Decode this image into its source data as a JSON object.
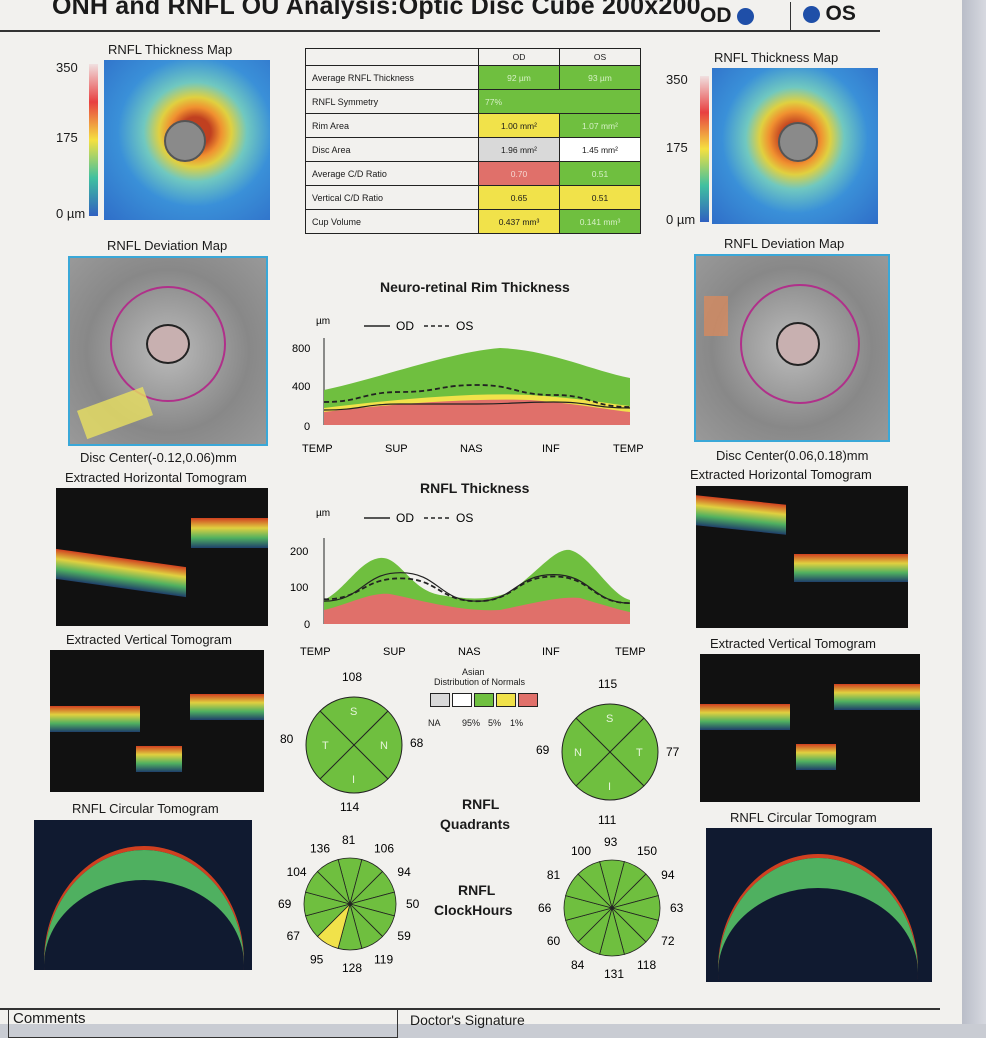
{
  "header": {
    "title": "ONH and RNFL OU Analysis:Optic Disc Cube 200x200",
    "od": "OD",
    "os": "OS"
  },
  "maps": {
    "thickness_title": "RNFL Thickness Map",
    "scale_high": "350",
    "scale_mid": "175",
    "scale_low": "0 µm",
    "deviation_title": "RNFL Deviation Map",
    "od_disc_center": "Disc Center(-0.12,0.06)mm",
    "os_disc_center": "Disc Center(0.06,0.18)mm"
  },
  "tomograms": {
    "horizontal": "Extracted Horizontal Tomogram",
    "vertical": "Extracted Vertical Tomogram",
    "circular": "RNFL Circular Tomogram"
  },
  "table": {
    "col_od": "OD",
    "col_os": "OS",
    "rows": [
      {
        "name": "Average RNFL Thickness",
        "od": "92 µm",
        "os": "93 µm"
      },
      {
        "name": "RNFL Symmetry",
        "od": "77%",
        "os": ""
      },
      {
        "name": "Rim Area",
        "od": "1.00 mm²",
        "os": "1.07 mm²"
      },
      {
        "name": "Disc Area",
        "od": "1.96 mm²",
        "os": "1.45 mm²"
      },
      {
        "name": "Average C/D Ratio",
        "od": "0.70",
        "os": "0.51"
      },
      {
        "name": "Vertical C/D Ratio",
        "od": "0.65",
        "os": "0.51"
      },
      {
        "name": "Cup Volume",
        "od": "0.437 mm³",
        "os": "0.141 mm³"
      }
    ]
  },
  "rim_chart": {
    "title": "Neuro-retinal Rim Thickness",
    "unit": "µm",
    "legend_od": "OD",
    "legend_os": "OS",
    "yticks": [
      "800",
      "400",
      "0"
    ],
    "xticks": [
      "TEMP",
      "SUP",
      "NAS",
      "INF",
      "TEMP"
    ]
  },
  "rnfl_chart": {
    "title": "RNFL Thickness",
    "unit": "µm",
    "legend_od": "OD",
    "legend_os": "OS",
    "yticks": [
      "200",
      "100",
      "0"
    ],
    "xticks": [
      "TEMP",
      "SUP",
      "NAS",
      "INF",
      "TEMP"
    ]
  },
  "normals": {
    "title_line1": "Asian",
    "title_line2": "Distribution of Normals",
    "labels": [
      "NA",
      "95%",
      "5%",
      "1%"
    ]
  },
  "quadrants": {
    "label_line1": "RNFL",
    "label_line2": "Quadrants",
    "od": {
      "top": "108",
      "left": "80",
      "right": "68",
      "bottom": "114"
    },
    "os": {
      "top": "115",
      "left": "69",
      "right": "77",
      "bottom": "111"
    },
    "letters": {
      "s": "S",
      "n": "N",
      "i": "I",
      "t": "T"
    }
  },
  "clockhours": {
    "label_line1": "RNFL",
    "label_line2": "ClockHours",
    "od": [
      "81",
      "106",
      "94",
      "50",
      "59",
      "119",
      "128",
      "95",
      "67",
      "69",
      "104",
      "136"
    ],
    "os": [
      "93",
      "150",
      "94",
      "63",
      "72",
      "118",
      "131",
      "84",
      "60",
      "66",
      "81",
      "100"
    ]
  },
  "footer": {
    "comments": "Comments",
    "signature": "Doctor's Signature"
  },
  "chart_data": [
    {
      "type": "area",
      "title": "Neuro-retinal Rim Thickness",
      "ylabel": "µm",
      "ylim": [
        0,
        800
      ],
      "x": [
        "TEMP",
        "SUP",
        "NAS",
        "INF",
        "TEMP"
      ],
      "series": [
        {
          "name": "OD",
          "values": [
            150,
            210,
            210,
            230,
            170
          ]
        },
        {
          "name": "OS",
          "values": [
            230,
            330,
            400,
            300,
            180
          ]
        }
      ]
    },
    {
      "type": "line",
      "title": "RNFL Thickness",
      "ylabel": "µm",
      "ylim": [
        0,
        200
      ],
      "x": [
        "TEMP",
        "SUP",
        "NAS",
        "INF",
        "TEMP"
      ],
      "series": [
        {
          "name": "OD",
          "values": [
            60,
            135,
            60,
            130,
            55
          ]
        },
        {
          "name": "OS",
          "values": [
            65,
            120,
            60,
            125,
            55
          ]
        }
      ]
    }
  ]
}
